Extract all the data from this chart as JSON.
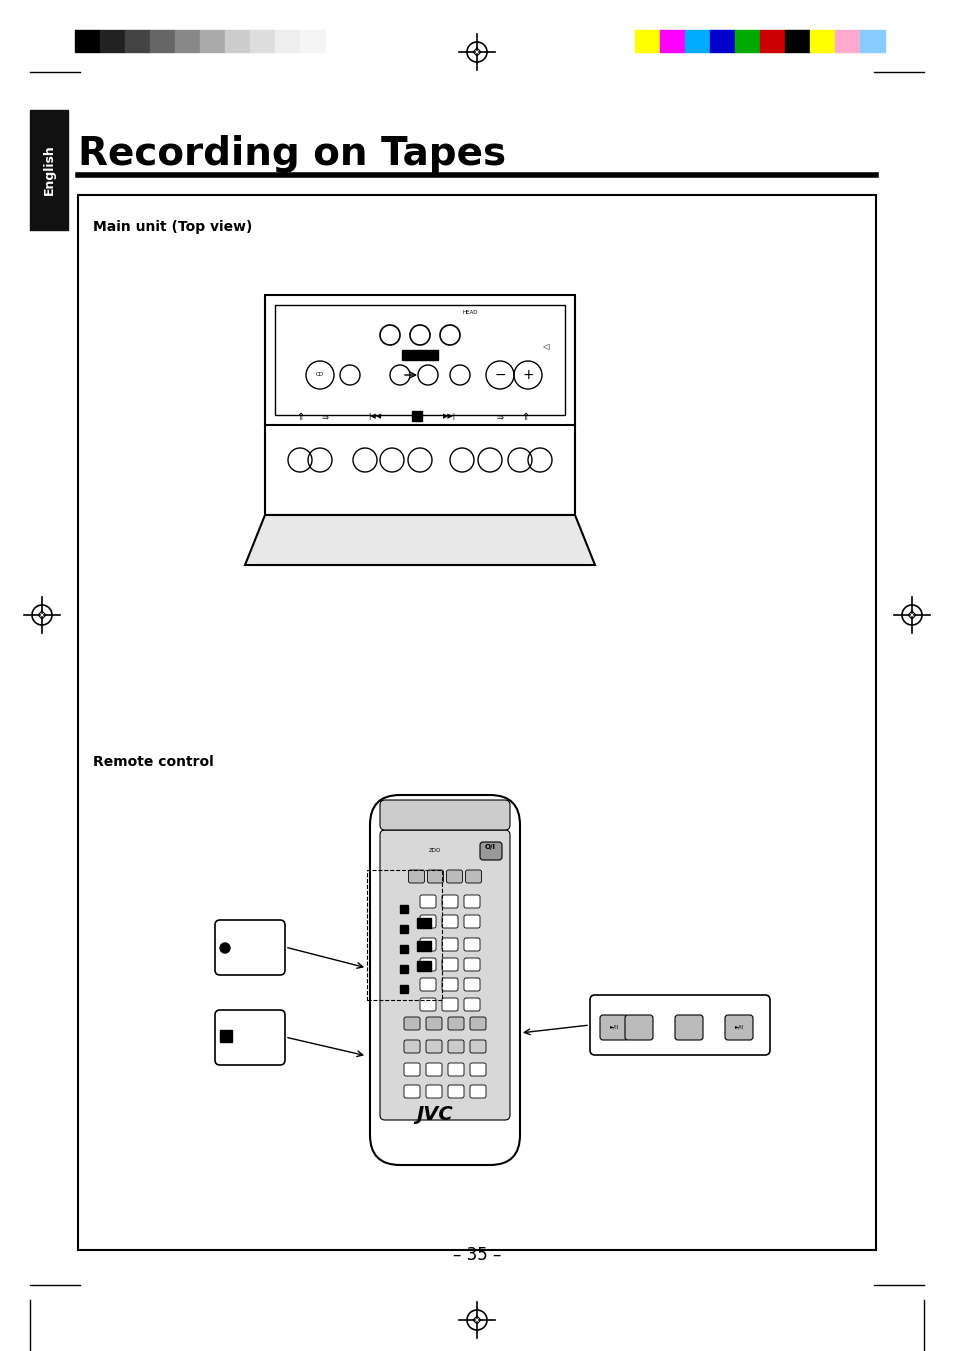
{
  "title": "Recording on Tapes",
  "language_tab": "English",
  "main_unit_label": "Main unit (Top view)",
  "remote_control_label": "Remote control",
  "page_number": "– 35 –",
  "bg_color": "#ffffff",
  "border_color": "#000000",
  "grayscale_colors": [
    "#000000",
    "#222222",
    "#444444",
    "#666666",
    "#888888",
    "#aaaaaa",
    "#cccccc",
    "#dddddd",
    "#eeeeee",
    "#f5f5f5"
  ],
  "color_bars": [
    "#ffff00",
    "#ff00ff",
    "#00aaff",
    "#0000cc",
    "#00aa00",
    "#cc0000",
    "#000000",
    "#ffff00",
    "#ffaacc",
    "#88ccff"
  ],
  "title_fontsize": 28,
  "label_fontsize": 10,
  "tab_color": "#111111",
  "tab_text_color": "#ffffff"
}
